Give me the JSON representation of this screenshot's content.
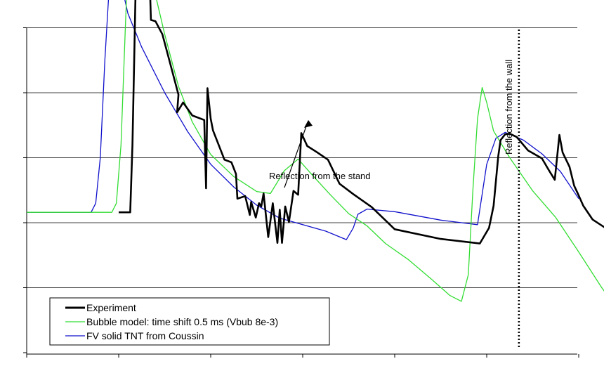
{
  "chart_data": {
    "type": "line",
    "title": "",
    "xlabel": "",
    "ylabel": "",
    "grid": true,
    "legend_position": "bottom-left",
    "x_range": [
      0,
      12
    ],
    "y_range": [
      -2,
      5
    ],
    "x_ticks": [
      0,
      2,
      4,
      6,
      8,
      10,
      12
    ],
    "y_ticks": [
      -2,
      -1,
      0,
      1,
      2,
      3,
      4,
      5
    ],
    "series": [
      {
        "name": "Experiment",
        "color": "#000000",
        "style": "thick",
        "points": [
          [
            2.0,
            0.16
          ],
          [
            2.25,
            0.16
          ],
          [
            2.3,
            1.2
          ],
          [
            2.4,
            4.7
          ],
          [
            2.47,
            4.1
          ],
          [
            2.5,
            5.1
          ],
          [
            2.57,
            4.5
          ],
          [
            2.63,
            4.72
          ],
          [
            2.7,
            3.12
          ],
          [
            2.8,
            3.1
          ],
          [
            2.95,
            2.9
          ],
          [
            3.1,
            2.5
          ],
          [
            3.3,
            1.97
          ],
          [
            3.27,
            1.7
          ],
          [
            3.4,
            1.85
          ],
          [
            3.6,
            1.65
          ],
          [
            3.86,
            1.58
          ],
          [
            3.9,
            0.53
          ],
          [
            3.93,
            2.07
          ],
          [
            4.0,
            1.6
          ],
          [
            4.05,
            1.42
          ],
          [
            4.3,
            0.97
          ],
          [
            4.45,
            0.93
          ],
          [
            4.55,
            0.75
          ],
          [
            4.58,
            0.37
          ],
          [
            4.75,
            0.41
          ],
          [
            4.85,
            0.12
          ],
          [
            4.88,
            0.32
          ],
          [
            4.98,
            0.08
          ],
          [
            5.05,
            0.3
          ],
          [
            5.1,
            0.25
          ],
          [
            5.15,
            0.45
          ],
          [
            5.25,
            -0.22
          ],
          [
            5.35,
            0.3
          ],
          [
            5.45,
            -0.31
          ],
          [
            5.5,
            0.2
          ],
          [
            5.55,
            -0.31
          ],
          [
            5.62,
            0.25
          ],
          [
            5.7,
            0.01
          ],
          [
            5.8,
            0.49
          ],
          [
            5.9,
            0.43
          ],
          [
            5.97,
            1.38
          ],
          [
            6.1,
            1.18
          ],
          [
            6.3,
            1.09
          ],
          [
            6.55,
            0.97
          ],
          [
            6.8,
            0.6
          ],
          [
            7.1,
            0.44
          ],
          [
            7.5,
            0.24
          ],
          [
            8.0,
            -0.1
          ],
          [
            9.0,
            -0.25
          ],
          [
            9.85,
            -0.32
          ],
          [
            10.05,
            -0.08
          ],
          [
            10.15,
            0.26
          ],
          [
            10.25,
            1.02
          ],
          [
            10.3,
            1.27
          ],
          [
            10.4,
            1.36
          ],
          [
            10.5,
            1.37
          ],
          [
            10.65,
            1.32
          ],
          [
            10.9,
            1.11
          ],
          [
            11.2,
            0.99
          ],
          [
            11.35,
            0.81
          ],
          [
            11.48,
            0.66
          ],
          [
            11.58,
            1.35
          ],
          [
            11.65,
            1.08
          ],
          [
            11.8,
            0.86
          ],
          [
            11.9,
            0.57
          ],
          [
            11.98,
            0.45
          ],
          [
            12.1,
            0.26
          ],
          [
            12.3,
            0.05
          ],
          [
            12.6,
            -0.09
          ]
        ]
      },
      {
        "name": "Bubble model: time shift 0.5 ms (Vbub 8e-3)",
        "color": "#33dd33",
        "style": "thin",
        "points": [
          [
            0.0,
            0.16
          ],
          [
            1.85,
            0.16
          ],
          [
            1.95,
            0.3
          ],
          [
            2.05,
            1.2
          ],
          [
            2.15,
            3.1
          ],
          [
            2.25,
            4.9
          ],
          [
            2.35,
            5.7
          ],
          [
            2.45,
            5.2
          ],
          [
            2.6,
            4.4
          ],
          [
            2.8,
            3.5
          ],
          [
            3.0,
            2.9
          ],
          [
            3.3,
            2.1
          ],
          [
            3.6,
            1.55
          ],
          [
            4.0,
            1.05
          ],
          [
            4.5,
            0.71
          ],
          [
            5.0,
            0.48
          ],
          [
            5.3,
            0.45
          ],
          [
            5.6,
            0.8
          ],
          [
            5.9,
            0.98
          ],
          [
            6.2,
            0.74
          ],
          [
            6.6,
            0.43
          ],
          [
            7.0,
            0.14
          ],
          [
            7.4,
            -0.05
          ],
          [
            7.8,
            -0.32
          ],
          [
            8.3,
            -0.57
          ],
          [
            8.8,
            -0.87
          ],
          [
            9.2,
            -1.12
          ],
          [
            9.45,
            -1.21
          ],
          [
            9.6,
            -0.8
          ],
          [
            9.7,
            0.5
          ],
          [
            9.8,
            1.6
          ],
          [
            9.9,
            2.08
          ],
          [
            10.0,
            1.85
          ],
          [
            10.15,
            1.41
          ],
          [
            10.5,
            1.0
          ],
          [
            11.0,
            0.49
          ],
          [
            11.5,
            0.08
          ],
          [
            12.0,
            -0.45
          ],
          [
            12.5,
            -1.0
          ],
          [
            13.02,
            -1.5
          ]
        ]
      },
      {
        "name": "FV solid TNT from Coussin",
        "color": "#1111cc",
        "style": "thin",
        "points": [
          [
            0.0,
            0.16
          ],
          [
            1.4,
            0.16
          ],
          [
            1.5,
            0.3
          ],
          [
            1.6,
            1.0
          ],
          [
            1.7,
            2.5
          ],
          [
            1.8,
            3.7
          ],
          [
            1.9,
            4.05
          ],
          [
            2.0,
            3.85
          ],
          [
            2.2,
            3.22
          ],
          [
            2.5,
            2.7
          ],
          [
            3.0,
            2.0
          ],
          [
            3.5,
            1.4
          ],
          [
            4.0,
            0.9
          ],
          [
            4.5,
            0.55
          ],
          [
            5.0,
            0.27
          ],
          [
            5.5,
            0.07
          ],
          [
            6.0,
            -0.03
          ],
          [
            6.5,
            -0.13
          ],
          [
            6.95,
            -0.26
          ],
          [
            7.1,
            -0.08
          ],
          [
            7.2,
            0.13
          ],
          [
            7.4,
            0.21
          ],
          [
            8.0,
            0.17
          ],
          [
            9.0,
            0.04
          ],
          [
            9.8,
            -0.03
          ],
          [
            10.0,
            0.9
          ],
          [
            10.2,
            1.3
          ],
          [
            10.4,
            1.39
          ],
          [
            10.8,
            1.27
          ],
          [
            11.2,
            1.06
          ],
          [
            11.6,
            0.79
          ],
          [
            12.0,
            0.37
          ]
        ]
      }
    ],
    "annotations": [
      {
        "text": "Reflection from the stand",
        "x": 6.0,
        "y": 1.45
      },
      {
        "text": "Reflection from the wall",
        "x": 10.7,
        "orientation": "vertical",
        "line_style": "dotted"
      }
    ]
  }
}
